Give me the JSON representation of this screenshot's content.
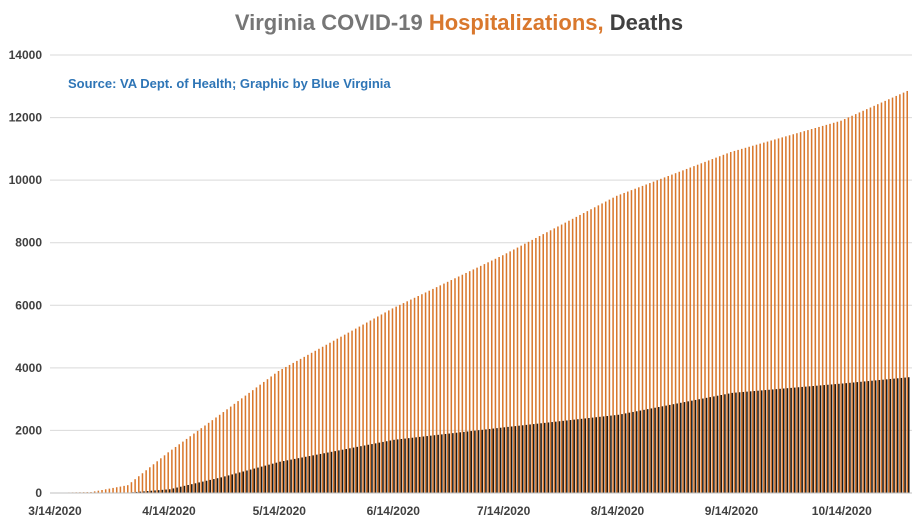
{
  "colors": {
    "title_gray": "#767676",
    "hosp": "#D9782D",
    "deaths_title": "#404040",
    "deaths": "#1a1a1a",
    "source": "#2E75B6",
    "grid": "#d9d9d9"
  },
  "chart_data": {
    "type": "bar",
    "title_parts": [
      "Virginia COVID-19 ",
      "Hospitalizations,",
      " Deaths"
    ],
    "source": "Source: VA Dept. of Health; Graphic by Blue Virginia",
    "ylim": [
      0,
      14000
    ],
    "yticks": [
      0,
      2000,
      4000,
      6000,
      8000,
      10000,
      12000,
      14000
    ],
    "xtick_labels": [
      "3/14/2020",
      "4/14/2020",
      "5/14/2020",
      "6/14/2020",
      "7/14/2020",
      "8/14/2020",
      "9/14/2020",
      "10/14/2020"
    ],
    "grid": true,
    "x_start": "3/14/2020",
    "series": [
      {
        "name": "Hospitalizations",
        "anchors_day_value": [
          [
            0,
            10
          ],
          [
            10,
            30
          ],
          [
            20,
            250
          ],
          [
            31,
            1300
          ],
          [
            45,
            2500
          ],
          [
            61,
            3900
          ],
          [
            92,
            5900
          ],
          [
            122,
            7600
          ],
          [
            153,
            9500
          ],
          [
            184,
            10900
          ],
          [
            214,
            11900
          ],
          [
            232,
            12850
          ]
        ]
      },
      {
        "name": "Deaths",
        "anchors_day_value": [
          [
            0,
            2
          ],
          [
            10,
            5
          ],
          [
            20,
            15
          ],
          [
            31,
            120
          ],
          [
            45,
            500
          ],
          [
            61,
            1000
          ],
          [
            92,
            1700
          ],
          [
            122,
            2100
          ],
          [
            153,
            2500
          ],
          [
            184,
            3200
          ],
          [
            214,
            3500
          ],
          [
            232,
            3700
          ]
        ]
      }
    ]
  }
}
